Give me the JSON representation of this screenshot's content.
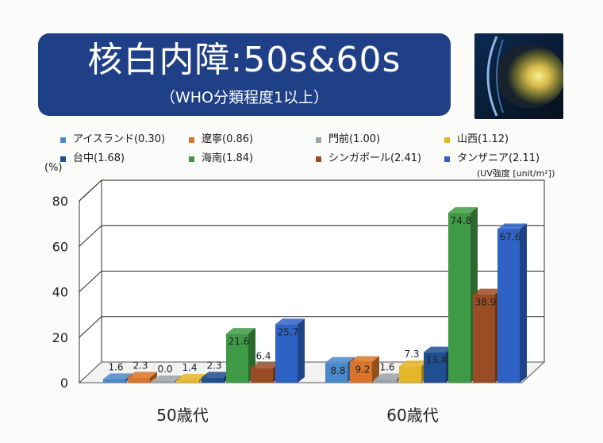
{
  "title": {
    "main": "核白内障:50s&60s",
    "sub": "（WHO分類程度1以上）"
  },
  "photo": {
    "icon": "eye-lens-cataract-photo"
  },
  "legend": [
    {
      "label": "アイスランド(0.30)",
      "color": "#4a89c9"
    },
    {
      "label": "遼寧(0.86)",
      "color": "#d9752b"
    },
    {
      "label": "門前(1.00)",
      "color": "#9ea3a8"
    },
    {
      "label": "山西(1.12)",
      "color": "#e6b62a"
    },
    {
      "label": "台中(1.68)",
      "color": "#1f4f8f"
    },
    {
      "label": "海南(1.84)",
      "color": "#3f9a45"
    },
    {
      "label": "シンガポール(2.41)",
      "color": "#9a4c24"
    },
    {
      "label": "タンザニア(2.11)",
      "color": "#2e63c5"
    }
  ],
  "unit_label": "(%)",
  "uv_label": "(UV強度 [unit/m²])",
  "chart_data": {
    "type": "bar",
    "categories": [
      "50歳代",
      "60歳代"
    ],
    "ylim": [
      0,
      80
    ],
    "yticks": [
      0,
      20,
      40,
      60,
      80
    ],
    "grid": true,
    "legend_placement": "top",
    "series": [
      {
        "name": "アイスランド(0.30)",
        "values": [
          1.6,
          8.8
        ],
        "labels": [
          "1.6",
          "8.8"
        ]
      },
      {
        "name": "遼寧(0.86)",
        "values": [
          2.3,
          9.2
        ],
        "labels": [
          "2.3",
          "9.2"
        ]
      },
      {
        "name": "門前(1.00)",
        "values": [
          0.0,
          1.6
        ],
        "labels": [
          "0.0",
          "1.6"
        ]
      },
      {
        "name": "山西(1.12)",
        "values": [
          1.4,
          7.3
        ],
        "labels": [
          "1.4",
          "7.3"
        ]
      },
      {
        "name": "台中(1.68)",
        "values": [
          2.3,
          13.4
        ],
        "labels": [
          "2.3",
          "13.4"
        ]
      },
      {
        "name": "海南(1.84)",
        "values": [
          21.6,
          74.8
        ],
        "labels": [
          "21.6",
          "74.8"
        ]
      },
      {
        "name": "シンガポール(2.41)",
        "values": [
          6.4,
          38.9
        ],
        "labels": [
          "6.4",
          "38.9"
        ]
      },
      {
        "name": "タンザニア(2.11)",
        "values": [
          25.7,
          67.6
        ],
        "labels": [
          "25.7",
          "67.6"
        ]
      }
    ]
  }
}
